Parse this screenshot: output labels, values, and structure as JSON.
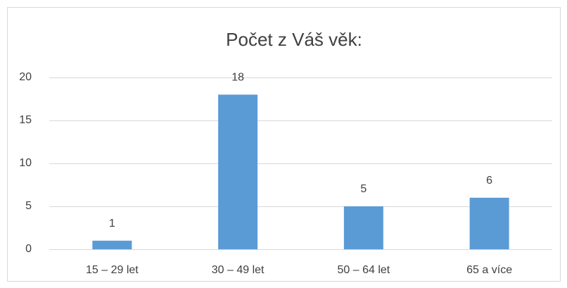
{
  "chart_data": {
    "type": "bar",
    "title": "Počet z Váš věk:",
    "categories": [
      "15 – 29 let",
      "30 – 49 let",
      "50 – 64 let",
      "65 a více"
    ],
    "values": [
      1,
      18,
      5,
      6
    ],
    "color": "#5b9bd5",
    "ylim": [
      0,
      20
    ],
    "yticks": [
      0,
      5,
      10,
      15,
      20
    ],
    "grid": true,
    "data_labels": true
  }
}
